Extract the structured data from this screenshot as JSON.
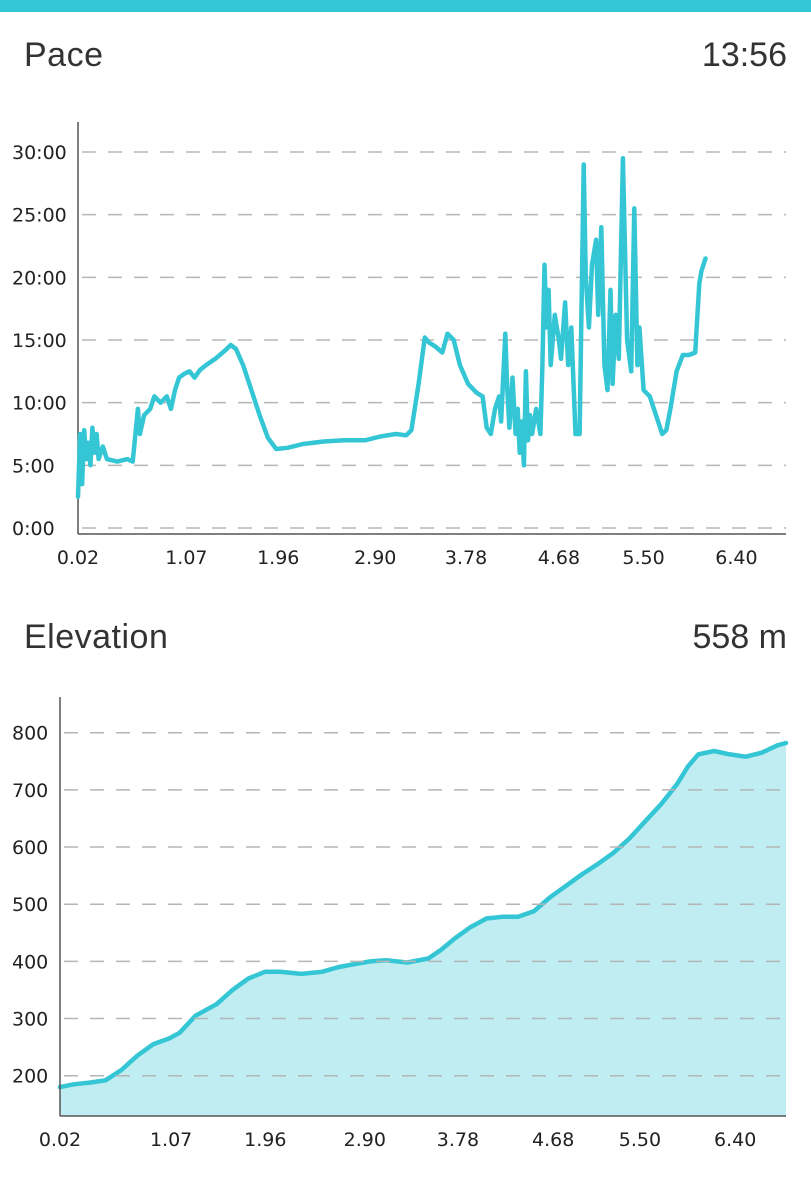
{
  "theme": {
    "accent": "#34c6d4",
    "fill": "#bfedf2",
    "grid": "#b5b5b5"
  },
  "pace": {
    "title": "Pace",
    "value": "13:56",
    "chart_data": {
      "type": "line",
      "title": "Pace",
      "xlabel": "",
      "ylabel": "",
      "x_ticks": [
        "0.02",
        "1.07",
        "1.96",
        "2.90",
        "3.78",
        "4.68",
        "5.50",
        "6.40"
      ],
      "y_ticks": [
        "0:00",
        "5:00",
        "10:00",
        "15:00",
        "20:00",
        "25:00",
        "30:00"
      ],
      "ylim": [
        0,
        30
      ],
      "xlim": [
        0.02,
        6.88
      ],
      "grid": true,
      "series": [
        {
          "points": [
            [
              0.02,
              2.5
            ],
            [
              0.04,
              7.5
            ],
            [
              0.06,
              3.5
            ],
            [
              0.08,
              7.8
            ],
            [
              0.1,
              5.5
            ],
            [
              0.12,
              6.8
            ],
            [
              0.14,
              5.0
            ],
            [
              0.16,
              8.0
            ],
            [
              0.18,
              6.0
            ],
            [
              0.2,
              7.5
            ],
            [
              0.22,
              5.5
            ],
            [
              0.26,
              6.5
            ],
            [
              0.3,
              5.5
            ],
            [
              0.4,
              5.3
            ],
            [
              0.5,
              5.5
            ],
            [
              0.55,
              5.3
            ],
            [
              0.6,
              9.5
            ],
            [
              0.62,
              7.5
            ],
            [
              0.66,
              9.0
            ],
            [
              0.72,
              9.5
            ],
            [
              0.76,
              10.5
            ],
            [
              0.82,
              10.0
            ],
            [
              0.88,
              10.5
            ],
            [
              0.92,
              9.5
            ],
            [
              0.96,
              11.0
            ],
            [
              1.0,
              12.0
            ],
            [
              1.05,
              12.3
            ],
            [
              1.1,
              12.5
            ],
            [
              1.15,
              12.0
            ],
            [
              1.2,
              12.6
            ],
            [
              1.26,
              13.0
            ],
            [
              1.35,
              13.5
            ],
            [
              1.45,
              14.2
            ],
            [
              1.5,
              14.6
            ],
            [
              1.55,
              14.3
            ],
            [
              1.62,
              13.0
            ],
            [
              1.7,
              11.0
            ],
            [
              1.78,
              9.0
            ],
            [
              1.86,
              7.2
            ],
            [
              1.94,
              6.3
            ],
            [
              2.05,
              6.4
            ],
            [
              2.2,
              6.7
            ],
            [
              2.4,
              6.9
            ],
            [
              2.6,
              7.0
            ],
            [
              2.8,
              7.0
            ],
            [
              2.95,
              7.3
            ],
            [
              3.1,
              7.5
            ],
            [
              3.2,
              7.4
            ],
            [
              3.25,
              7.8
            ],
            [
              3.32,
              11.5
            ],
            [
              3.38,
              15.2
            ],
            [
              3.42,
              14.8
            ],
            [
              3.48,
              14.5
            ],
            [
              3.55,
              14.0
            ],
            [
              3.6,
              15.5
            ],
            [
              3.66,
              15.0
            ],
            [
              3.72,
              13.0
            ],
            [
              3.8,
              11.5
            ],
            [
              3.88,
              10.8
            ],
            [
              3.94,
              10.5
            ],
            [
              3.98,
              8.0
            ],
            [
              4.02,
              7.5
            ],
            [
              4.06,
              9.5
            ],
            [
              4.1,
              10.5
            ],
            [
              4.12,
              8.5
            ],
            [
              4.16,
              15.5
            ],
            [
              4.18,
              11.0
            ],
            [
              4.2,
              8.0
            ],
            [
              4.23,
              12.0
            ],
            [
              4.26,
              7.5
            ],
            [
              4.28,
              9.5
            ],
            [
              4.3,
              6.0
            ],
            [
              4.32,
              8.5
            ],
            [
              4.34,
              5.0
            ],
            [
              4.36,
              12.5
            ],
            [
              4.38,
              7.0
            ],
            [
              4.4,
              9.0
            ],
            [
              4.42,
              7.5
            ],
            [
              4.46,
              9.5
            ],
            [
              4.5,
              7.5
            ],
            [
              4.52,
              13.0
            ],
            [
              4.54,
              21.0
            ],
            [
              4.56,
              16.0
            ],
            [
              4.58,
              19.0
            ],
            [
              4.6,
              13.0
            ],
            [
              4.64,
              17.0
            ],
            [
              4.68,
              15.0
            ],
            [
              4.7,
              13.5
            ],
            [
              4.74,
              18.0
            ],
            [
              4.77,
              13.0
            ],
            [
              4.8,
              16.0
            ],
            [
              4.84,
              7.5
            ],
            [
              4.88,
              7.5
            ],
            [
              4.92,
              29.0
            ],
            [
              4.94,
              20.0
            ],
            [
              4.97,
              16.0
            ],
            [
              5.0,
              21.0
            ],
            [
              5.04,
              23.0
            ],
            [
              5.06,
              17.0
            ],
            [
              5.09,
              24.0
            ],
            [
              5.12,
              13.0
            ],
            [
              5.15,
              11.0
            ],
            [
              5.18,
              19.0
            ],
            [
              5.2,
              11.5
            ],
            [
              5.23,
              17.0
            ],
            [
              5.26,
              13.5
            ],
            [
              5.3,
              29.5
            ],
            [
              5.34,
              15.0
            ],
            [
              5.38,
              12.5
            ],
            [
              5.41,
              25.5
            ],
            [
              5.44,
              13.0
            ],
            [
              5.46,
              16.0
            ],
            [
              5.5,
              11.0
            ],
            [
              5.56,
              10.5
            ],
            [
              5.62,
              9.0
            ],
            [
              5.68,
              7.5
            ],
            [
              5.72,
              7.8
            ],
            [
              5.76,
              9.5
            ],
            [
              5.82,
              12.5
            ],
            [
              5.88,
              13.8
            ],
            [
              5.94,
              13.8
            ],
            [
              6.0,
              14.0
            ],
            [
              6.04,
              19.5
            ],
            [
              6.06,
              20.5
            ],
            [
              6.1,
              21.5
            ]
          ]
        }
      ]
    }
  },
  "elevation": {
    "title": "Elevation",
    "value": "558 m",
    "chart_data": {
      "type": "area",
      "title": "Elevation",
      "xlabel": "",
      "ylabel": "",
      "x_ticks": [
        "0.02",
        "1.07",
        "1.96",
        "2.90",
        "3.78",
        "4.68",
        "5.50",
        "6.40"
      ],
      "y_ticks": [
        "200",
        "300",
        "400",
        "500",
        "600",
        "700",
        "800"
      ],
      "ylim": [
        140,
        810
      ],
      "xlim": [
        0.02,
        6.88
      ],
      "grid": true,
      "series": [
        {
          "points": [
            [
              0.02,
              180
            ],
            [
              0.15,
              185
            ],
            [
              0.3,
              188
            ],
            [
              0.45,
              192
            ],
            [
              0.6,
              210
            ],
            [
              0.75,
              235
            ],
            [
              0.9,
              255
            ],
            [
              1.05,
              265
            ],
            [
              1.15,
              275
            ],
            [
              1.3,
              305
            ],
            [
              1.5,
              325
            ],
            [
              1.65,
              350
            ],
            [
              1.8,
              370
            ],
            [
              1.96,
              382
            ],
            [
              2.1,
              382
            ],
            [
              2.3,
              378
            ],
            [
              2.5,
              382
            ],
            [
              2.65,
              390
            ],
            [
              2.8,
              395
            ],
            [
              2.95,
              400
            ],
            [
              3.1,
              402
            ],
            [
              3.3,
              398
            ],
            [
              3.5,
              405
            ],
            [
              3.62,
              420
            ],
            [
              3.75,
              440
            ],
            [
              3.9,
              460
            ],
            [
              4.05,
              475
            ],
            [
              4.2,
              478
            ],
            [
              4.35,
              478
            ],
            [
              4.5,
              488
            ],
            [
              4.65,
              512
            ],
            [
              4.8,
              532
            ],
            [
              4.95,
              552
            ],
            [
              5.1,
              570
            ],
            [
              5.25,
              590
            ],
            [
              5.4,
              615
            ],
            [
              5.55,
              645
            ],
            [
              5.7,
              675
            ],
            [
              5.85,
              710
            ],
            [
              5.95,
              740
            ],
            [
              6.05,
              762
            ],
            [
              6.2,
              768
            ],
            [
              6.35,
              762
            ],
            [
              6.5,
              758
            ],
            [
              6.65,
              765
            ],
            [
              6.8,
              778
            ],
            [
              6.88,
              782
            ]
          ]
        }
      ]
    }
  }
}
